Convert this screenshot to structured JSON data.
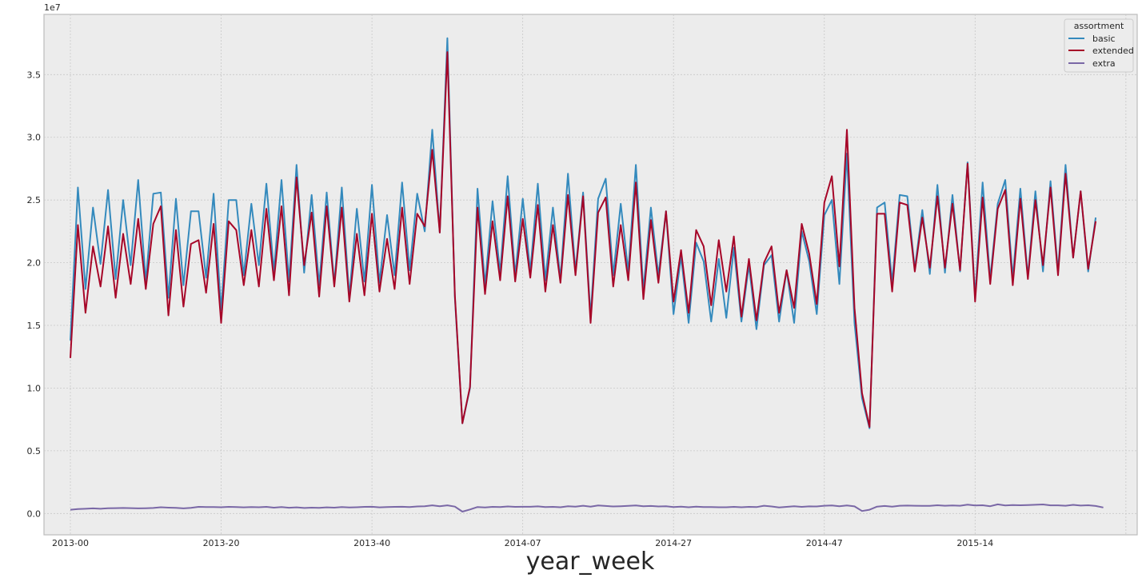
{
  "chart_data": {
    "type": "line",
    "xlabel": "year_week",
    "ylabel": "",
    "offset_label": "1e7",
    "ylim": [
      -0.17,
      3.98
    ],
    "y_ticks": [
      "0.0",
      "0.5",
      "1.0",
      "1.5",
      "2.0",
      "2.5",
      "3.0",
      "3.5"
    ],
    "x_ticks": [
      "2013-00",
      "2013-20",
      "2013-40",
      "2014-07",
      "2014-27",
      "2014-47",
      "2015-14"
    ],
    "x_tick_index": [
      0,
      20,
      40,
      60,
      80,
      100,
      120
    ],
    "xlim_index": [
      -3.5,
      141.5
    ],
    "grid": true,
    "legend": {
      "title": "assortment",
      "placement": "top-right",
      "entries": [
        "basic",
        "extended",
        "extra"
      ]
    },
    "series": [
      {
        "name": "basic",
        "color": "#348ABD",
        "values": [
          1.38,
          2.6,
          1.79,
          2.44,
          1.99,
          2.58,
          1.87,
          2.5,
          1.98,
          2.66,
          1.85,
          2.55,
          2.56,
          1.72,
          2.51,
          1.82,
          2.41,
          2.41,
          1.88,
          2.55,
          1.62,
          2.5,
          2.5,
          1.9,
          2.47,
          1.98,
          2.63,
          1.93,
          2.66,
          1.85,
          2.78,
          1.92,
          2.54,
          1.82,
          2.56,
          1.83,
          2.6,
          1.73,
          2.43,
          1.85,
          2.62,
          1.84,
          2.38,
          1.9,
          2.64,
          1.94,
          2.55,
          2.25,
          3.06,
          2.24,
          3.79,
          1.72,
          0.72,
          1.0,
          2.59,
          1.82,
          2.49,
          1.92,
          2.69,
          1.9,
          2.51,
          1.93,
          2.63,
          1.86,
          2.44,
          1.87,
          2.71,
          1.93,
          2.56,
          1.57,
          2.51,
          2.67,
          1.9,
          2.47,
          1.93,
          2.78,
          1.78,
          2.44,
          1.9,
          2.41,
          1.59,
          2.05,
          1.52,
          2.16,
          2.01,
          1.53,
          2.03,
          1.56,
          2.12,
          1.53,
          1.98,
          1.47,
          1.98,
          2.06,
          1.53,
          1.94,
          1.52,
          2.25,
          2.01,
          1.59,
          2.38,
          2.5,
          1.83,
          2.87,
          1.52,
          0.92,
          0.68,
          2.44,
          2.48,
          1.84,
          2.54,
          2.53,
          1.95,
          2.42,
          1.91,
          2.62,
          1.92,
          2.54,
          1.93,
          2.8,
          1.73,
          2.64,
          1.87,
          2.47,
          2.66,
          1.88,
          2.59,
          1.89,
          2.57,
          1.93,
          2.65,
          1.93,
          2.78,
          2.04,
          2.57,
          1.93,
          2.36
        ]
      },
      {
        "name": "extended",
        "color": "#A60628",
        "values": [
          1.24,
          2.3,
          1.6,
          2.13,
          1.81,
          2.29,
          1.72,
          2.23,
          1.83,
          2.35,
          1.79,
          2.31,
          2.45,
          1.58,
          2.26,
          1.65,
          2.15,
          2.18,
          1.76,
          2.31,
          1.52,
          2.33,
          2.26,
          1.82,
          2.26,
          1.81,
          2.43,
          1.86,
          2.45,
          1.74,
          2.68,
          1.98,
          2.4,
          1.73,
          2.45,
          1.81,
          2.44,
          1.69,
          2.23,
          1.74,
          2.39,
          1.77,
          2.19,
          1.79,
          2.44,
          1.83,
          2.39,
          2.29,
          2.9,
          2.24,
          3.68,
          1.74,
          0.72,
          1.01,
          2.44,
          1.75,
          2.33,
          1.86,
          2.53,
          1.85,
          2.35,
          1.88,
          2.46,
          1.77,
          2.3,
          1.84,
          2.54,
          1.9,
          2.53,
          1.52,
          2.4,
          2.52,
          1.81,
          2.3,
          1.86,
          2.64,
          1.71,
          2.34,
          1.84,
          2.41,
          1.69,
          2.1,
          1.6,
          2.26,
          2.13,
          1.66,
          2.18,
          1.77,
          2.21,
          1.57,
          2.03,
          1.54,
          2.0,
          2.13,
          1.6,
          1.94,
          1.64,
          2.31,
          2.07,
          1.67,
          2.48,
          2.69,
          1.97,
          3.06,
          1.64,
          0.96,
          0.69,
          2.39,
          2.39,
          1.77,
          2.48,
          2.46,
          1.93,
          2.36,
          1.96,
          2.53,
          1.96,
          2.47,
          1.94,
          2.79,
          1.69,
          2.52,
          1.83,
          2.43,
          2.58,
          1.82,
          2.51,
          1.87,
          2.5,
          1.98,
          2.6,
          1.9,
          2.71,
          2.04,
          2.57,
          1.95,
          2.33
        ]
      },
      {
        "name": "extra",
        "color": "#7A68A6",
        "values": [
          0.03,
          0.036,
          0.038,
          0.041,
          0.038,
          0.042,
          0.043,
          0.044,
          0.043,
          0.041,
          0.042,
          0.044,
          0.05,
          0.047,
          0.045,
          0.041,
          0.045,
          0.053,
          0.052,
          0.051,
          0.05,
          0.053,
          0.051,
          0.049,
          0.051,
          0.05,
          0.053,
          0.047,
          0.052,
          0.046,
          0.049,
          0.044,
          0.047,
          0.045,
          0.049,
          0.047,
          0.052,
          0.048,
          0.05,
          0.053,
          0.054,
          0.049,
          0.051,
          0.053,
          0.054,
          0.051,
          0.056,
          0.058,
          0.065,
          0.058,
          0.065,
          0.055,
          0.015,
          0.032,
          0.052,
          0.048,
          0.053,
          0.052,
          0.056,
          0.053,
          0.054,
          0.054,
          0.057,
          0.052,
          0.053,
          0.05,
          0.058,
          0.055,
          0.062,
          0.055,
          0.064,
          0.06,
          0.056,
          0.058,
          0.061,
          0.064,
          0.058,
          0.06,
          0.056,
          0.058,
          0.052,
          0.055,
          0.05,
          0.055,
          0.052,
          0.051,
          0.05,
          0.05,
          0.053,
          0.05,
          0.053,
          0.051,
          0.062,
          0.056,
          0.048,
          0.053,
          0.058,
          0.053,
          0.057,
          0.056,
          0.062,
          0.064,
          0.058,
          0.064,
          0.057,
          0.02,
          0.03,
          0.055,
          0.06,
          0.055,
          0.062,
          0.063,
          0.062,
          0.061,
          0.061,
          0.066,
          0.062,
          0.064,
          0.062,
          0.071,
          0.064,
          0.066,
          0.058,
          0.073,
          0.064,
          0.068,
          0.066,
          0.068,
          0.07,
          0.072,
          0.065,
          0.065,
          0.062,
          0.069,
          0.063,
          0.066,
          0.06,
          0.048
        ]
      }
    ]
  }
}
